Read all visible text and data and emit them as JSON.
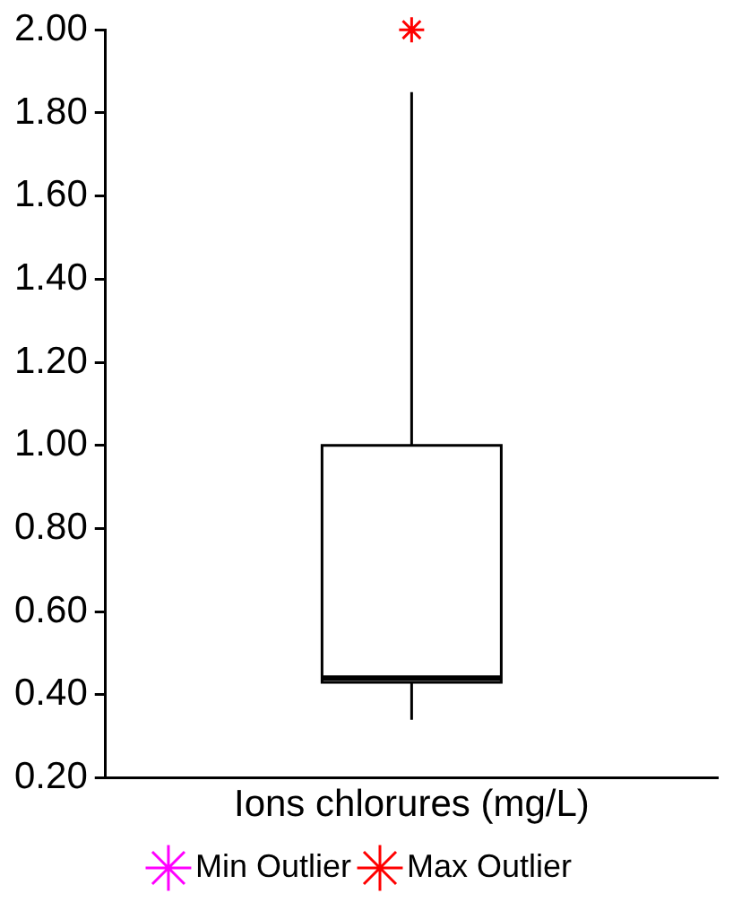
{
  "chart_data": {
    "type": "box",
    "categories": [
      "Ions chlorures (mg/L)"
    ],
    "boxes": [
      {
        "low": 0.34,
        "q1": 0.43,
        "median": 0.44,
        "q3": 1.0,
        "high": 1.85
      }
    ],
    "series": [
      {
        "name": "Min Outlier",
        "type": "scatter",
        "color": "#ff00ff",
        "x": [
          "Ions chlorures (mg/L)"
        ],
        "values": [
          null
        ]
      },
      {
        "name": "Max Outlier",
        "type": "scatter",
        "color": "#ff0000",
        "x": [
          "Ions chlorures (mg/L)"
        ],
        "values": [
          2.0
        ]
      }
    ],
    "ylim": [
      0.2,
      2.0
    ],
    "yticks": [
      {
        "value": 0.2,
        "label": "0.20"
      },
      {
        "value": 0.4,
        "label": "0.40"
      },
      {
        "value": 0.6,
        "label": "0.60"
      },
      {
        "value": 0.8,
        "label": "0.80"
      },
      {
        "value": 1.0,
        "label": "1.00"
      },
      {
        "value": 1.2,
        "label": "1.20"
      },
      {
        "value": 1.4,
        "label": "1.40"
      },
      {
        "value": 1.6,
        "label": "1.60"
      },
      {
        "value": 1.8,
        "label": "1.80"
      },
      {
        "value": 2.0,
        "label": "2.00"
      }
    ],
    "grid": false,
    "legend": "bottom",
    "marker": "cross"
  }
}
